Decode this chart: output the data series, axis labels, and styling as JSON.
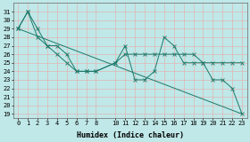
{
  "xlabel": "Humidex (Indice chaleur)",
  "bg_color": "#c0e8e8",
  "grid_color": "#e8a8a8",
  "line_color": "#1a7a6a",
  "ylim": [
    18.5,
    32.0
  ],
  "xlim": [
    -0.5,
    23.5
  ],
  "yticks": [
    19,
    20,
    21,
    22,
    23,
    24,
    25,
    26,
    27,
    28,
    29,
    30,
    31
  ],
  "xticks": [
    0,
    1,
    2,
    3,
    4,
    5,
    6,
    7,
    8,
    10,
    11,
    12,
    13,
    14,
    15,
    16,
    17,
    18,
    19,
    20,
    21,
    22,
    23
  ],
  "xtick_labels": [
    "0",
    "1",
    "2",
    "3",
    "4",
    "5",
    "6",
    "7",
    "8",
    "10",
    "11",
    "12",
    "13",
    "14",
    "15",
    "16",
    "17",
    "18",
    "19",
    "20",
    "21",
    "22",
    "23"
  ],
  "series1_x": [
    0,
    1,
    2,
    3,
    4,
    5,
    6,
    7,
    8,
    10,
    11,
    12,
    13,
    14,
    15,
    16,
    17,
    18,
    19,
    20,
    21,
    22,
    23
  ],
  "series1_y": [
    29,
    31,
    29,
    27,
    27,
    26,
    24,
    24,
    24,
    25,
    27,
    23,
    23,
    24,
    28,
    27,
    25,
    25,
    25,
    23,
    23,
    22,
    19
  ],
  "series2_x": [
    0,
    23
  ],
  "series2_y": [
    29,
    19
  ],
  "series3_x": [
    0,
    1,
    2,
    3,
    4,
    5,
    6,
    7,
    8,
    10,
    11,
    12,
    13,
    14,
    15,
    16,
    17,
    18,
    19,
    20,
    21,
    22,
    23
  ],
  "series3_y": [
    29,
    31,
    28,
    27,
    26,
    25,
    24,
    24,
    24,
    25,
    26,
    26,
    26,
    26,
    26,
    26,
    26,
    26,
    25,
    25,
    25,
    25,
    25
  ],
  "xlabel_fontsize": 6,
  "tick_fontsize": 5,
  "linewidth": 0.7,
  "markersize": 2.5
}
